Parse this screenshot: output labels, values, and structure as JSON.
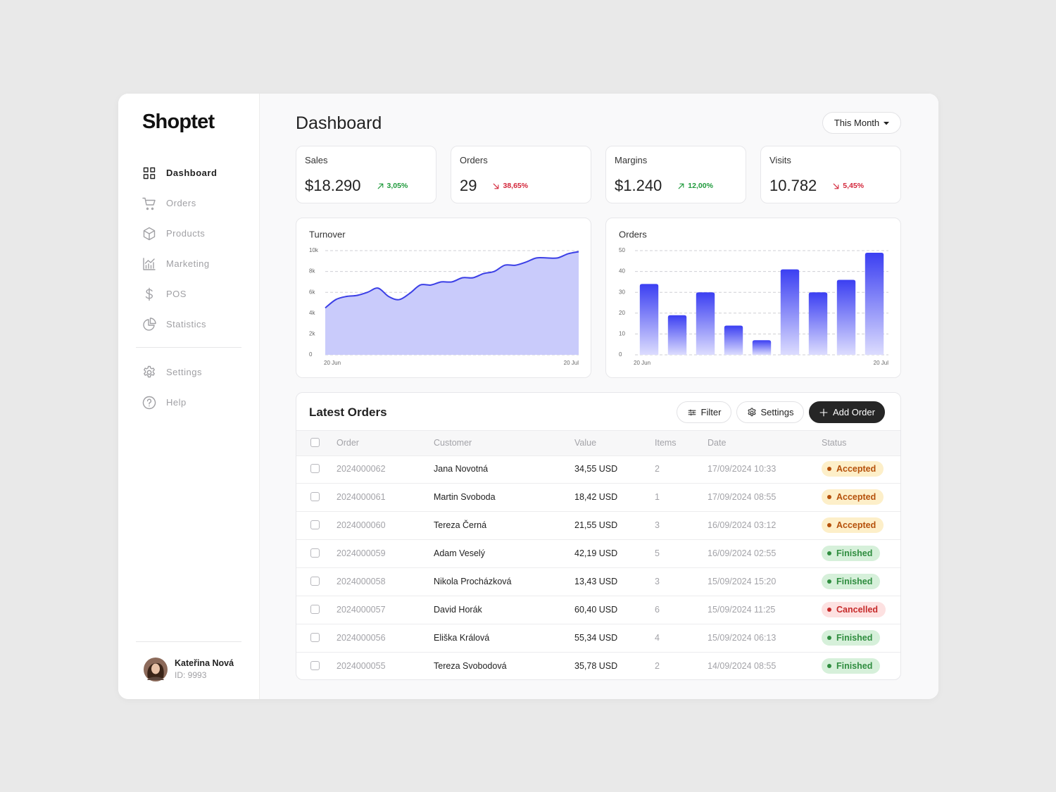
{
  "sidebar": {
    "logo": "Shoptet",
    "nav": [
      {
        "label": "Dashboard",
        "active": true
      },
      {
        "label": "Orders"
      },
      {
        "label": "Products"
      },
      {
        "label": "Marketing"
      },
      {
        "label": "POS"
      },
      {
        "label": "Statistics"
      }
    ],
    "secondary_nav": [
      {
        "label": "Settings"
      },
      {
        "label": "Help"
      }
    ],
    "user": {
      "name": "Kateřina Nová",
      "id": "ID: 9993"
    }
  },
  "header": {
    "title": "Dashboard",
    "period": "This Month"
  },
  "kpis": [
    {
      "label": "Sales",
      "value": "$18.290",
      "change": "3,05%",
      "trend": "up",
      "color": "#1f9a3c"
    },
    {
      "label": "Orders",
      "value": "29",
      "change": "38,65%",
      "trend": "down",
      "color": "#d3263a"
    },
    {
      "label": "Margins",
      "value": "$1.240",
      "change": "12,00%",
      "trend": "up",
      "color": "#1f9a3c"
    },
    {
      "label": "Visits",
      "value": "10.782",
      "change": "5,45%",
      "trend": "down",
      "color": "#d3263a"
    }
  ],
  "chart_data": [
    {
      "type": "area",
      "title": "Turnover",
      "categories": [
        "20 Jun",
        null,
        null,
        null,
        null,
        null,
        null,
        null,
        null,
        null,
        null,
        null,
        null,
        null,
        null,
        null,
        null,
        null,
        null,
        null,
        null,
        null,
        null,
        null,
        "20 Jul"
      ],
      "values": [
        4500,
        5300,
        5600,
        5700,
        6000,
        6400,
        5600,
        5300,
        5900,
        6700,
        6700,
        7000,
        7000,
        7400,
        7400,
        7800,
        8000,
        8600,
        8600,
        8900,
        9300,
        9300,
        9300,
        9700,
        9900
      ],
      "color": "#3b3fe6",
      "fill": "#c9cbfb",
      "ylim": [
        0,
        10000
      ],
      "yticks": [
        0,
        {
          "value": 2000,
          "label": "2k"
        },
        {
          "value": 4000,
          "label": "4k"
        },
        {
          "value": 6000,
          "label": "6k"
        },
        {
          "value": 8000,
          "label": "8k"
        },
        {
          "value": 10000,
          "label": "10k"
        }
      ],
      "grid": true
    },
    {
      "type": "bar",
      "title": "Orders",
      "categories": [
        "20 Jun",
        null,
        null,
        null,
        null,
        null,
        null,
        null,
        "20 Jul"
      ],
      "values": [
        34,
        19,
        30,
        14,
        7,
        41,
        30,
        36,
        49
      ],
      "color": "#3b3ff2",
      "ylim": [
        0,
        50
      ],
      "yticks": [
        0,
        10,
        20,
        30,
        40,
        50
      ],
      "grid": true
    }
  ],
  "table": {
    "title": "Latest Orders",
    "actions": [
      "Filter",
      "Settings",
      "Add Order"
    ],
    "columns": [
      "Order",
      "Customer",
      "Value",
      "Items",
      "Date",
      "Status"
    ],
    "rows": [
      {
        "order": "2024000062",
        "customer": "Jana Novotná",
        "value": "34,55 USD",
        "items": "2",
        "date": "17/09/2024 10:33",
        "status": "Accepted",
        "status_color": "#b5500a",
        "status_bg": "#fdefc9"
      },
      {
        "order": "2024000061",
        "customer": "Martin Svoboda",
        "value": "18,42 USD",
        "items": "1",
        "date": "17/09/2024 08:55",
        "status": "Accepted",
        "status_color": "#b5500a",
        "status_bg": "#fdefc9"
      },
      {
        "order": "2024000060",
        "customer": "Tereza Černá",
        "value": "21,55 USD",
        "items": "3",
        "date": "16/09/2024 03:12",
        "status": "Accepted",
        "status_color": "#b5500a",
        "status_bg": "#fdefc9"
      },
      {
        "order": "2024000059",
        "customer": "Adam Veselý",
        "value": "42,19 USD",
        "items": "5",
        "date": "16/09/2024 02:55",
        "status": "Finished",
        "status_color": "#2f8d3f",
        "status_bg": "#d6f0da"
      },
      {
        "order": "2024000058",
        "customer": "Nikola Procházková",
        "value": "13,43 USD",
        "items": "3",
        "date": "15/09/2024 15:20",
        "status": "Finished",
        "status_color": "#2f8d3f",
        "status_bg": "#d6f0da"
      },
      {
        "order": "2024000057",
        "customer": "David Horák",
        "value": "60,40 USD",
        "items": "6",
        "date": "15/09/2024 11:25",
        "status": "Cancelled",
        "status_color": "#c62a2a",
        "status_bg": "#fde1e1"
      },
      {
        "order": "2024000056",
        "customer": "Eliška Králová",
        "value": "55,34 USD",
        "items": "4",
        "date": "15/09/2024 06:13",
        "status": "Finished",
        "status_color": "#2f8d3f",
        "status_bg": "#d6f0da"
      },
      {
        "order": "2024000055",
        "customer": "Tereza Svobodová",
        "value": "35,78 USD",
        "items": "2",
        "date": "14/09/2024 08:55",
        "status": "Finished",
        "status_color": "#2f8d3f",
        "status_bg": "#d6f0da"
      }
    ]
  }
}
